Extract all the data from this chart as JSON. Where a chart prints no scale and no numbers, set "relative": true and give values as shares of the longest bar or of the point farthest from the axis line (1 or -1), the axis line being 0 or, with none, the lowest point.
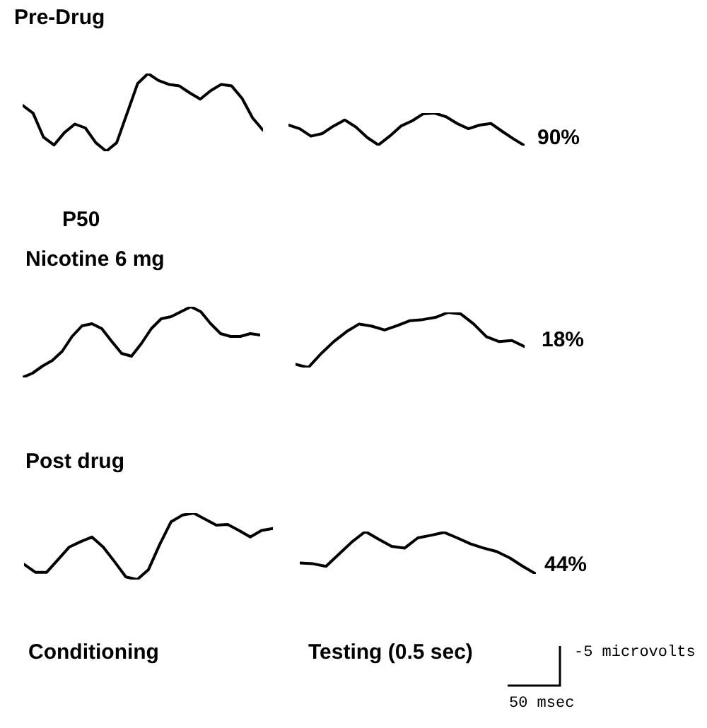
{
  "chart_data": [
    {
      "type": "line",
      "title": "Pre-Drug",
      "relative": true,
      "color": "#000000",
      "annotations": [
        "P50"
      ],
      "categories": [
        null,
        null,
        null,
        null,
        null,
        null,
        null,
        null,
        null,
        null,
        null,
        null,
        null,
        null,
        null,
        null,
        null,
        null,
        null,
        null,
        null,
        null,
        null,
        null
      ],
      "values": [
        0.59,
        0.49,
        0.18,
        0.08,
        0.24,
        0.35,
        0.3,
        0.11,
        0,
        0.11,
        0.49,
        0.87,
        1,
        0.91,
        0.86,
        0.84,
        0.75,
        0.67,
        0.78,
        0.86,
        0.84,
        0.68,
        0.43,
        0.27
      ]
    },
    {
      "type": "line",
      "relative": true,
      "color": "#000000",
      "annotations": [
        "90%"
      ],
      "categories": [
        null,
        null,
        null,
        null,
        null,
        null,
        null,
        null,
        null,
        null,
        null,
        null,
        null,
        null,
        null,
        null,
        null,
        null,
        null,
        null,
        null,
        null
      ],
      "values": [
        0.63,
        0.52,
        0.29,
        0.37,
        0.6,
        0.79,
        0.57,
        0.25,
        0.02,
        0.29,
        0.6,
        0.76,
        0.98,
        1,
        0.89,
        0.68,
        0.52,
        0.63,
        0.68,
        0.44,
        0.21,
        0
      ]
    },
    {
      "type": "line",
      "title": "Nicotine 6 mg",
      "relative": true,
      "color": "#000000",
      "categories": [
        null,
        null,
        null,
        null,
        null,
        null,
        null,
        null,
        null,
        null,
        null,
        null,
        null,
        null,
        null,
        null,
        null,
        null,
        null,
        null,
        null,
        null,
        null,
        null,
        null
      ],
      "values": [
        0,
        0.06,
        0.16,
        0.24,
        0.37,
        0.58,
        0.73,
        0.76,
        0.69,
        0.51,
        0.34,
        0.3,
        0.48,
        0.69,
        0.83,
        0.86,
        0.93,
        1,
        0.93,
        0.76,
        0.62,
        0.58,
        0.58,
        0.62,
        0.6
      ]
    },
    {
      "type": "line",
      "relative": true,
      "color": "#000000",
      "annotations": [
        "18%"
      ],
      "categories": [
        null,
        null,
        null,
        null,
        null,
        null,
        null,
        null,
        null,
        null,
        null,
        null,
        null,
        null,
        null,
        null,
        null,
        null,
        null
      ],
      "values": [
        0.06,
        0,
        0.25,
        0.47,
        0.65,
        0.79,
        0.75,
        0.68,
        0.76,
        0.85,
        0.87,
        0.91,
        1,
        0.97,
        0.79,
        0.56,
        0.47,
        0.49,
        0.38
      ]
    },
    {
      "type": "line",
      "title": "Post drug",
      "xlabel": "Conditioning",
      "relative": true,
      "color": "#000000",
      "categories": [
        null,
        null,
        null,
        null,
        null,
        null,
        null,
        null,
        null,
        null,
        null,
        null,
        null,
        null,
        null,
        null,
        null,
        null,
        null,
        null,
        null,
        null,
        null
      ],
      "values": [
        0.23,
        0.11,
        0.11,
        0.3,
        0.49,
        0.57,
        0.64,
        0.49,
        0.27,
        0.04,
        0,
        0.15,
        0.53,
        0.87,
        0.97,
        1,
        0.91,
        0.82,
        0.83,
        0.74,
        0.64,
        0.74,
        0.77
      ]
    },
    {
      "type": "line",
      "xlabel": "Testing (0.5 sec)",
      "relative": true,
      "color": "#000000",
      "annotations": [
        "44%",
        "-5 microvolts",
        "50 msec"
      ],
      "categories": [
        null,
        null,
        null,
        null,
        null,
        null,
        null,
        null,
        null,
        null,
        null,
        null,
        null,
        null,
        null,
        null,
        null,
        null,
        null
      ],
      "values": [
        0.26,
        0.24,
        0.18,
        0.47,
        0.76,
        1,
        0.82,
        0.65,
        0.61,
        0.85,
        0.91,
        0.98,
        0.85,
        0.71,
        0.61,
        0.53,
        0.38,
        0.18,
        0
      ]
    }
  ]
}
